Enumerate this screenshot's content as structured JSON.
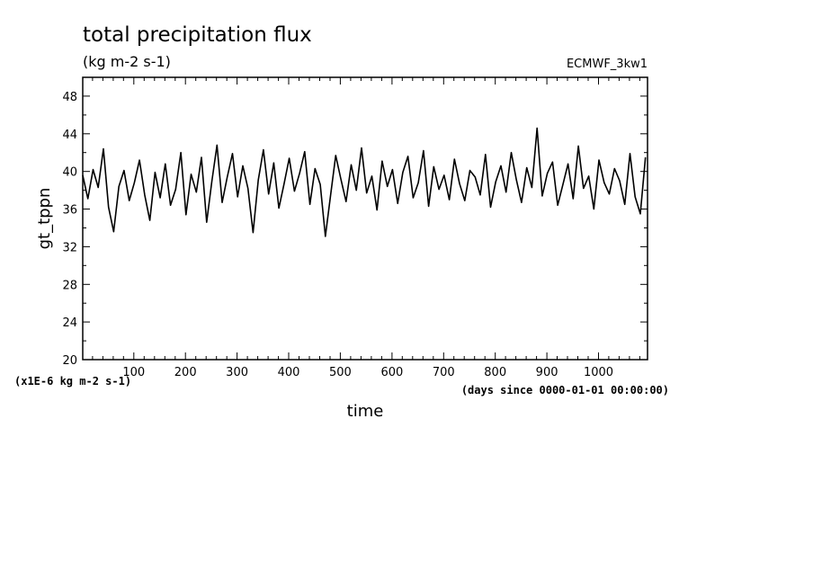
{
  "chart_data": {
    "type": "line",
    "title": "total precipitation flux",
    "units": "(kg m-2 s-1)",
    "source": "ECMWF_3kw1",
    "xlabel": "time",
    "ylabel": "gt_tppn",
    "x_unit_note": "(days since 0000-01-01 00:00:00)",
    "y_scale_note": "(x1E-6 kg m-2 s-1)",
    "xlim": [
      1,
      1095
    ],
    "ylim": [
      20,
      50
    ],
    "x_ticks": [
      100,
      200,
      300,
      400,
      500,
      600,
      700,
      800,
      900,
      1000
    ],
    "y_ticks": [
      20,
      24,
      28,
      32,
      36,
      40,
      44,
      48
    ],
    "grid": false,
    "series": [
      {
        "color": "#000000",
        "x": [
          1,
          11,
          21,
          31,
          41,
          51,
          61,
          71,
          81,
          91,
          101,
          111,
          121,
          131,
          141,
          151,
          161,
          171,
          181,
          191,
          201,
          211,
          221,
          231,
          241,
          251,
          261,
          271,
          281,
          291,
          301,
          311,
          321,
          331,
          341,
          351,
          361,
          371,
          381,
          391,
          401,
          411,
          421,
          431,
          441,
          451,
          461,
          471,
          481,
          491,
          501,
          511,
          521,
          531,
          541,
          551,
          561,
          571,
          581,
          591,
          601,
          611,
          621,
          631,
          641,
          651,
          661,
          671,
          681,
          691,
          701,
          711,
          721,
          731,
          741,
          751,
          761,
          771,
          781,
          791,
          801,
          811,
          821,
          831,
          841,
          851,
          861,
          871,
          881,
          891,
          901,
          911,
          921,
          931,
          941,
          951,
          961,
          971,
          981,
          991,
          1001,
          1011,
          1021,
          1031,
          1041,
          1051,
          1061,
          1071,
          1081,
          1091
        ],
        "values": [
          39.6,
          37.1,
          40.2,
          38.3,
          42.4,
          36.2,
          33.6,
          38.4,
          40.1,
          36.9,
          38.8,
          41.2,
          37.5,
          34.8,
          39.9,
          37.2,
          40.8,
          36.4,
          38.1,
          42.0,
          35.4,
          39.7,
          37.8,
          41.5,
          34.6,
          38.9,
          42.8,
          36.7,
          39.4,
          41.9,
          37.3,
          40.6,
          38.2,
          33.5,
          39.1,
          42.3,
          37.6,
          40.9,
          36.1,
          38.7,
          41.4,
          37.9,
          39.8,
          42.1,
          36.5,
          40.3,
          38.6,
          33.1,
          37.4,
          41.7,
          39.2,
          36.8,
          40.7,
          38.0,
          42.5,
          37.7,
          39.5,
          35.9,
          41.1,
          38.4,
          40.2,
          36.6,
          39.9,
          41.6,
          37.2,
          38.8,
          42.2,
          36.3,
          40.5,
          38.1,
          39.6,
          37.0,
          41.3,
          38.7,
          36.9,
          40.1,
          39.4,
          37.5,
          41.8,
          36.2,
          38.9,
          40.6,
          37.8,
          42.0,
          39.1,
          36.7,
          40.4,
          38.3,
          44.6,
          37.4,
          39.8,
          41.0,
          36.4,
          38.6,
          40.8,
          37.1,
          42.7,
          38.2,
          39.5,
          36.0,
          41.2,
          38.8,
          37.6,
          40.3,
          39.0,
          36.5,
          41.9,
          37.3,
          35.5,
          41.5
        ]
      }
    ]
  }
}
